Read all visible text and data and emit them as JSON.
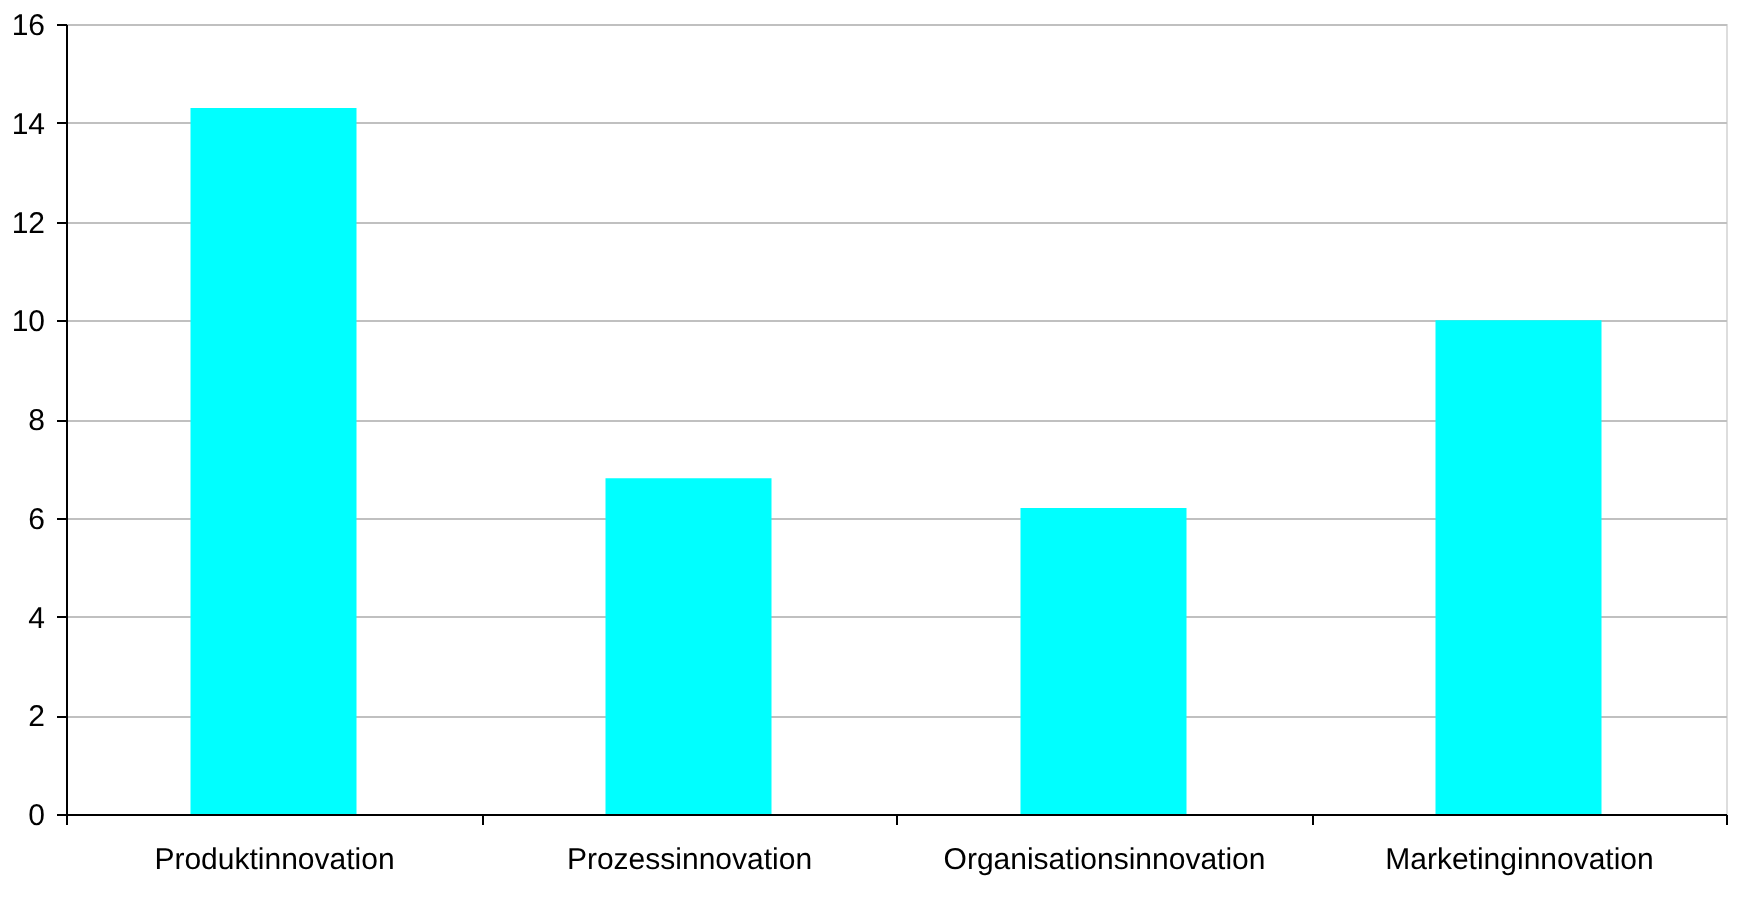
{
  "chart_data": {
    "type": "bar",
    "categories": [
      "Produktinnovation",
      "Prozessinnovation",
      "Organisationsinnovation",
      "Marketinginnovation"
    ],
    "values": [
      14.3,
      6.8,
      6.2,
      10.0
    ],
    "color": "#00ffff",
    "ylim": [
      0,
      16
    ],
    "yticks": [
      0,
      2,
      4,
      6,
      8,
      10,
      12,
      14,
      16
    ],
    "grid": "y"
  }
}
